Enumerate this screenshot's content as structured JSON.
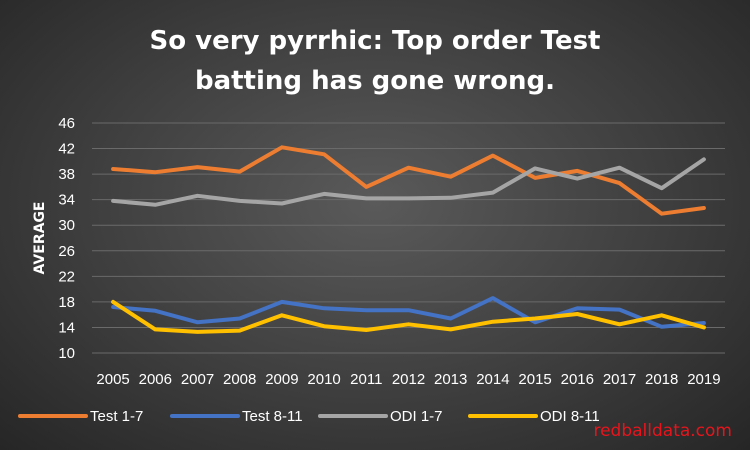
{
  "chart_data": {
    "type": "line",
    "title_lines": [
      "So very pyrrhic: Top order Test",
      "batting has gone wrong."
    ],
    "ylabel": "AVERAGE",
    "xlabel": "",
    "ylim": [
      10,
      46
    ],
    "yticks": [
      10,
      14,
      18,
      22,
      26,
      30,
      34,
      38,
      42,
      46
    ],
    "grid": true,
    "legend_position": "bottom",
    "x": [
      "2005",
      "2006",
      "2007",
      "2008",
      "2009",
      "2010",
      "2011",
      "2012",
      "2013",
      "2014",
      "2015",
      "2016",
      "2017",
      "2018",
      "2019"
    ],
    "series": [
      {
        "name": "Test 1-7",
        "color": "#ed7d31",
        "values": [
          38.8,
          38.3,
          39.1,
          38.4,
          42.2,
          41.1,
          36.0,
          39.0,
          37.6,
          40.9,
          37.4,
          38.5,
          36.6,
          31.8,
          32.7
        ]
      },
      {
        "name": "Test 8-11",
        "color": "#4472c4",
        "values": [
          17.2,
          16.6,
          14.8,
          15.4,
          18.0,
          17.0,
          16.7,
          16.7,
          15.4,
          18.6,
          14.8,
          17.0,
          16.8,
          14.1,
          14.7
        ]
      },
      {
        "name": "ODI 1-7",
        "color": "#a5a5a5",
        "values": [
          33.8,
          33.2,
          34.6,
          33.8,
          33.4,
          34.9,
          34.2,
          34.2,
          34.3,
          35.1,
          38.9,
          37.3,
          39.0,
          35.8,
          40.3
        ]
      },
      {
        "name": "ODI 8-11",
        "color": "#ffc000",
        "values": [
          18.0,
          13.7,
          13.3,
          13.5,
          15.9,
          14.2,
          13.6,
          14.5,
          13.7,
          14.9,
          15.4,
          16.1,
          14.5,
          15.9,
          14.0
        ]
      }
    ]
  },
  "watermark": "redballdata.com"
}
